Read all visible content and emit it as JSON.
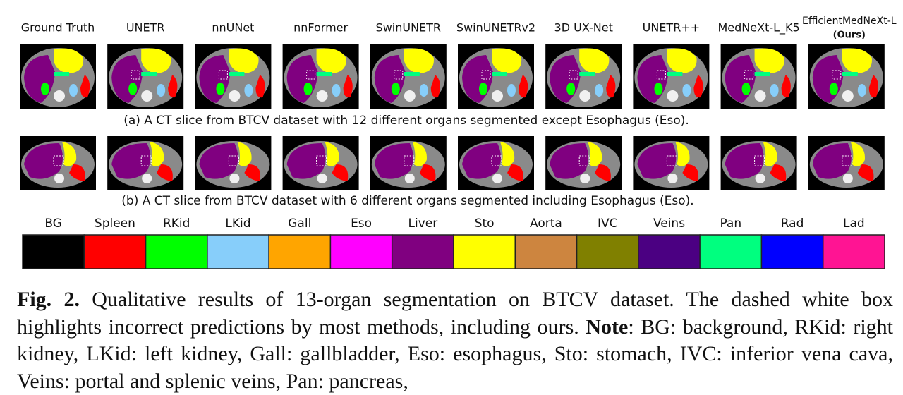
{
  "methods": [
    {
      "name": "Ground Truth"
    },
    {
      "name": "UNETR"
    },
    {
      "name": "nnUNet"
    },
    {
      "name": "nnFormer"
    },
    {
      "name": "SwinUNETR"
    },
    {
      "name": "SwinUNETRv2"
    },
    {
      "name": "3D UX-Net"
    },
    {
      "name": "UNETR++"
    },
    {
      "name": "MedNeXt-L_K5"
    },
    {
      "name": "EfficientMedNeXt-L",
      "note": "(Ours)"
    }
  ],
  "captions": {
    "a": "(a)  A CT slice from BTCV dataset with 12 different organs segmented except Esophagus (Eso).",
    "b": "(b)  A CT slice from BTCV dataset with 6 different organs segmented including Esophagus (Eso)."
  },
  "legend": [
    {
      "label": "BG",
      "color": "#000000"
    },
    {
      "label": "Spleen",
      "color": "#ff0000"
    },
    {
      "label": "RKid",
      "color": "#00ff00"
    },
    {
      "label": "LKid",
      "color": "#87cefa"
    },
    {
      "label": "Gall",
      "color": "#ffa500"
    },
    {
      "label": "Eso",
      "color": "#ff00ff"
    },
    {
      "label": "Liver",
      "color": "#800080"
    },
    {
      "label": "Sto",
      "color": "#ffff00"
    },
    {
      "label": "Aorta",
      "color": "#cd853f"
    },
    {
      "label": "IVC",
      "color": "#808000"
    },
    {
      "label": "Veins",
      "color": "#4b0082"
    },
    {
      "label": "Pan",
      "color": "#00ff7f"
    },
    {
      "label": "Rad",
      "color": "#0000ff"
    },
    {
      "label": "Lad",
      "color": "#ff1493"
    }
  ],
  "figure_caption": {
    "label": "Fig. 2.",
    "text": " Qualitative results of 13-organ segmentation on BTCV dataset. The dashed white box highlights incorrect predictions by most methods, including ours. ",
    "note_label": "Note",
    "note_text": ": BG: background, RKid: right kidney, LKid: left kidney, Gall: gallbladder, Eso: esophagus, Sto: stomach, IVC: inferior vena cava, Veins: portal and splenic veins, Pan: pancreas,"
  }
}
